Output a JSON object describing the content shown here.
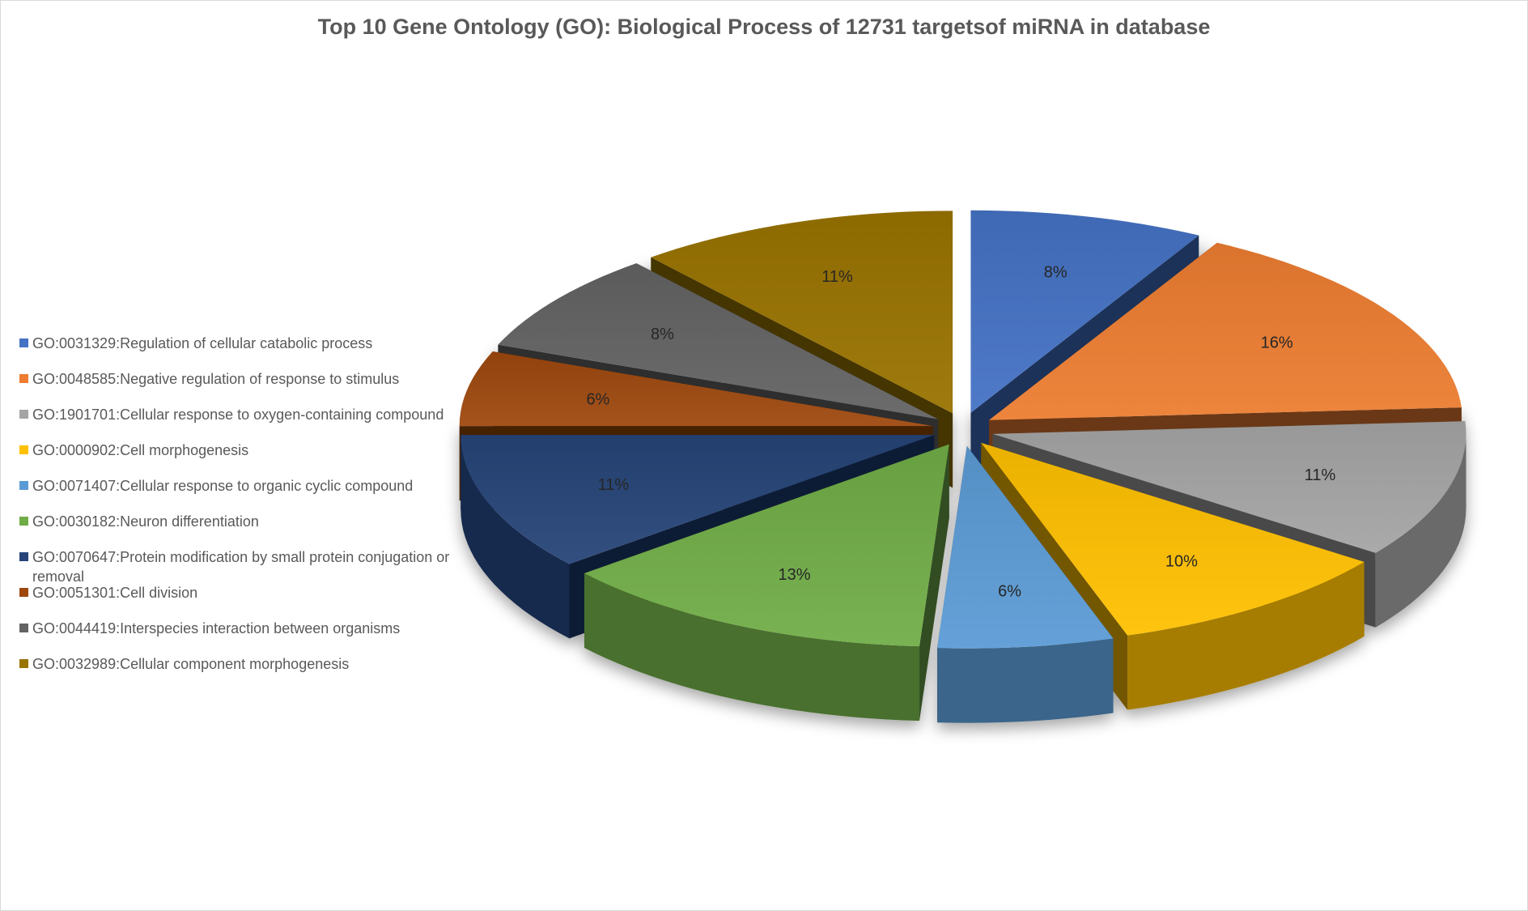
{
  "chart_data": {
    "type": "pie",
    "title": "Top 10 Gene Ontology (GO): Biological Process of 12731 targetsof miRNA in database",
    "legend_position": "left",
    "categories": [
      "GO:0031329:Regulation of cellular catabolic process",
      "GO:0048585:Negative regulation of response to stimulus",
      "GO:1901701:Cellular response to oxygen-containing compound",
      "GO:0000902:Cell morphogenesis",
      "GO:0071407:Cellular response to organic cyclic compound",
      "GO:0030182:Neuron differentiation",
      "GO:0070647:Protein modification by small protein conjugation or removal",
      "GO:0051301:Cell division",
      "GO:0044419:Interspecies interaction between organisms",
      "GO:0032989:Cellular component morphogenesis"
    ],
    "values": [
      8,
      16,
      11,
      10,
      6,
      13,
      11,
      6,
      8,
      11
    ],
    "data_labels": [
      "8%",
      "16%",
      "11%",
      "10%",
      "6%",
      "13%",
      "11%",
      "6%",
      "8%",
      "11%"
    ],
    "colors": [
      "#4472C4",
      "#ED7D31",
      "#A5A5A5",
      "#FFC000",
      "#5B9BD5",
      "#70AD47",
      "#264478",
      "#9E480E",
      "#636363",
      "#997300"
    ]
  }
}
